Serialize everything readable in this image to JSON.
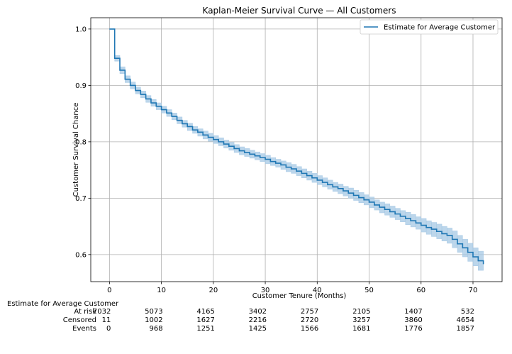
{
  "chart_data": {
    "type": "line",
    "title": "Kaplan-Meier Survival Curve — All Customers",
    "xlabel": "Customer Tenure (Months)",
    "ylabel": "Customer Survival Chance",
    "xlim": [
      -3.6,
      75.6
    ],
    "ylim": [
      0.552,
      1.02
    ],
    "xticks": [
      0,
      10,
      20,
      30,
      40,
      50,
      60,
      70
    ],
    "yticks": [
      0.6,
      0.7,
      0.8,
      0.9,
      1.0
    ],
    "ytick_labels": [
      "0.6",
      "0.7",
      "0.8",
      "0.9",
      "1.0"
    ],
    "grid": true,
    "legend_position": "top-right",
    "colors": {
      "line": "#1f77b4",
      "band": "#a6c8e4",
      "grid": "#b0b0b0"
    },
    "series": [
      {
        "name": "Estimate for Average Customer",
        "x": [
          0,
          1,
          2,
          3,
          4,
          5,
          6,
          7,
          8,
          9,
          10,
          11,
          12,
          13,
          14,
          15,
          16,
          17,
          18,
          19,
          20,
          21,
          22,
          23,
          24,
          25,
          26,
          27,
          28,
          29,
          30,
          31,
          32,
          33,
          34,
          35,
          36,
          37,
          38,
          39,
          40,
          41,
          42,
          43,
          44,
          45,
          46,
          47,
          48,
          49,
          50,
          51,
          52,
          53,
          54,
          55,
          56,
          57,
          58,
          59,
          60,
          61,
          62,
          63,
          64,
          65,
          66,
          67,
          68,
          69,
          70,
          71,
          72
        ],
        "y": [
          1.0,
          0.948,
          0.927,
          0.911,
          0.9,
          0.891,
          0.884,
          0.876,
          0.869,
          0.863,
          0.857,
          0.851,
          0.845,
          0.838,
          0.832,
          0.827,
          0.821,
          0.817,
          0.812,
          0.808,
          0.804,
          0.8,
          0.796,
          0.792,
          0.788,
          0.784,
          0.781,
          0.778,
          0.775,
          0.772,
          0.769,
          0.765,
          0.762,
          0.759,
          0.755,
          0.752,
          0.748,
          0.744,
          0.74,
          0.736,
          0.732,
          0.728,
          0.724,
          0.72,
          0.717,
          0.713,
          0.709,
          0.705,
          0.701,
          0.697,
          0.693,
          0.688,
          0.684,
          0.68,
          0.676,
          0.672,
          0.668,
          0.664,
          0.66,
          0.656,
          0.652,
          0.648,
          0.645,
          0.641,
          0.637,
          0.634,
          0.627,
          0.619,
          0.612,
          0.604,
          0.596,
          0.589,
          0.583
        ],
        "ci_lower": [
          1.0,
          0.943,
          0.921,
          0.905,
          0.894,
          0.885,
          0.878,
          0.87,
          0.863,
          0.857,
          0.851,
          0.845,
          0.839,
          0.832,
          0.826,
          0.82,
          0.815,
          0.81,
          0.805,
          0.801,
          0.797,
          0.793,
          0.789,
          0.785,
          0.781,
          0.777,
          0.774,
          0.771,
          0.768,
          0.765,
          0.761,
          0.758,
          0.755,
          0.751,
          0.747,
          0.744,
          0.74,
          0.736,
          0.732,
          0.728,
          0.724,
          0.72,
          0.716,
          0.712,
          0.708,
          0.704,
          0.7,
          0.696,
          0.692,
          0.688,
          0.683,
          0.679,
          0.674,
          0.67,
          0.666,
          0.662,
          0.658,
          0.653,
          0.649,
          0.645,
          0.64,
          0.636,
          0.632,
          0.628,
          0.624,
          0.62,
          0.612,
          0.604,
          0.596,
          0.588,
          0.58,
          0.572,
          0.566
        ],
        "ci_upper": [
          1.0,
          0.953,
          0.933,
          0.917,
          0.906,
          0.897,
          0.89,
          0.882,
          0.875,
          0.869,
          0.863,
          0.857,
          0.851,
          0.844,
          0.838,
          0.833,
          0.827,
          0.823,
          0.819,
          0.815,
          0.811,
          0.807,
          0.803,
          0.799,
          0.795,
          0.791,
          0.788,
          0.785,
          0.782,
          0.779,
          0.776,
          0.772,
          0.769,
          0.766,
          0.763,
          0.76,
          0.756,
          0.752,
          0.748,
          0.744,
          0.74,
          0.736,
          0.732,
          0.728,
          0.725,
          0.721,
          0.718,
          0.714,
          0.71,
          0.706,
          0.702,
          0.697,
          0.693,
          0.69,
          0.686,
          0.682,
          0.678,
          0.675,
          0.671,
          0.667,
          0.664,
          0.66,
          0.657,
          0.654,
          0.65,
          0.647,
          0.642,
          0.634,
          0.627,
          0.62,
          0.612,
          0.606,
          0.6
        ]
      }
    ]
  },
  "at_risk_table": {
    "title": "Estimate for Average Customer",
    "columns": [
      0,
      10,
      20,
      30,
      40,
      50,
      60,
      70
    ],
    "rows": [
      {
        "label": "At risk",
        "values": [
          "7032",
          "5073",
          "4165",
          "3402",
          "2757",
          "2105",
          "1407",
          "532"
        ]
      },
      {
        "label": "Censored",
        "values": [
          "11",
          "1002",
          "1627",
          "2216",
          "2720",
          "3257",
          "3860",
          "4654"
        ]
      },
      {
        "label": "Events",
        "values": [
          "0",
          "968",
          "1251",
          "1425",
          "1566",
          "1681",
          "1776",
          "1857"
        ]
      }
    ]
  }
}
